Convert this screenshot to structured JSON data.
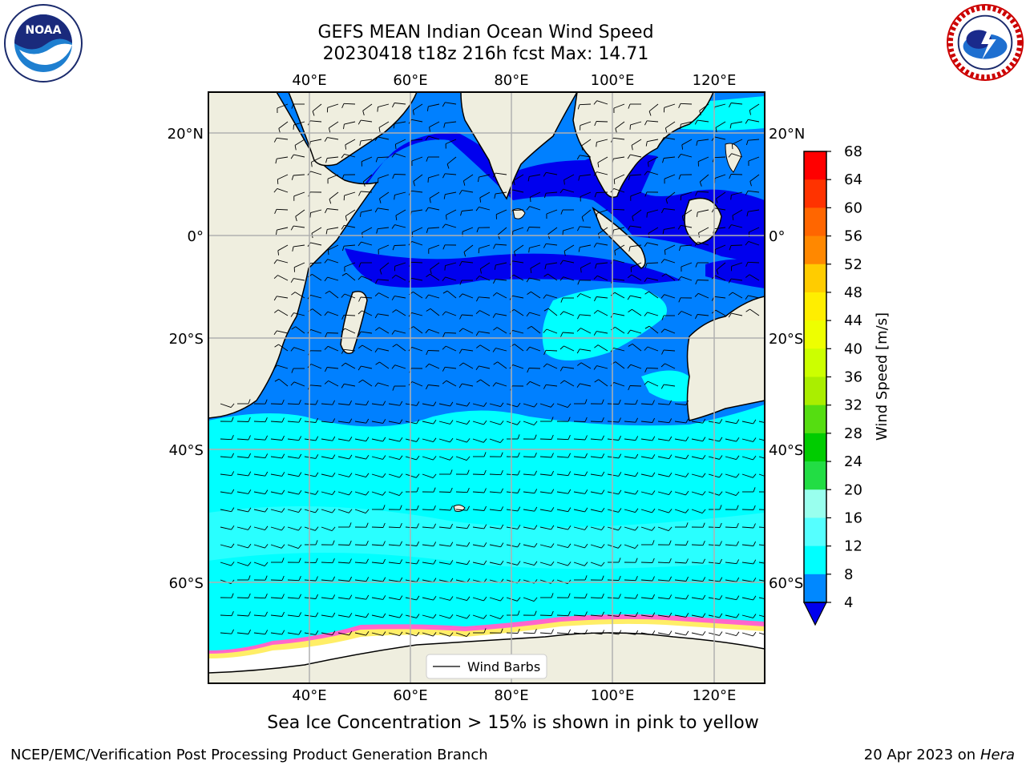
{
  "title": {
    "line1": "GEFS MEAN Indian Ocean Wind Speed",
    "line2": "20230418 t18z 216h fcst   Max: 14.71"
  },
  "logos": {
    "left": {
      "icon": "noaa-logo",
      "text": "NOAA"
    },
    "right": {
      "icon": "national-weather-service-logo",
      "text": "NATIONAL WEATHER SERVICE"
    }
  },
  "map": {
    "lon_ticks": [
      "40°E",
      "60°E",
      "80°E",
      "100°E",
      "120°E"
    ],
    "lat_ticks_left": [
      "20°N",
      "0°",
      "20°S",
      "40°S",
      "60°S"
    ],
    "lat_ticks_right": [
      "20°N",
      "0°",
      "20°S",
      "40°S",
      "60°S"
    ],
    "legend_label": "Wind Barbs",
    "land_color": "#efeedf",
    "ice_colors": [
      "#ff66cc",
      "#ff9933",
      "#ffff66"
    ]
  },
  "colorbar": {
    "label": "Wind Speed [m/s]",
    "ticks": [
      "68",
      "64",
      "60",
      "56",
      "52",
      "48",
      "44",
      "40",
      "36",
      "32",
      "28",
      "24",
      "20",
      "16",
      "12",
      "8",
      "4"
    ],
    "colors": [
      "#ff0000",
      "#ff3300",
      "#ff6600",
      "#ff8800",
      "#ffaa00",
      "#ffcc00",
      "#ffee00",
      "#eeff00",
      "#ccff00",
      "#aaee00",
      "#55dd11",
      "#00cc00",
      "#22dd44",
      "#55ee77",
      "#99ffee",
      "#55ffff",
      "#00ffff",
      "#0088ff"
    ],
    "extend_color": "#0000ee"
  },
  "caption": "Sea Ice Concentration > 15% is shown in pink to yellow",
  "footer": {
    "left": "NCEP/EMC/Verification Post Processing Product Generation Branch",
    "right_date": "20 Apr 2023 on",
    "right_machine": "Hera"
  }
}
